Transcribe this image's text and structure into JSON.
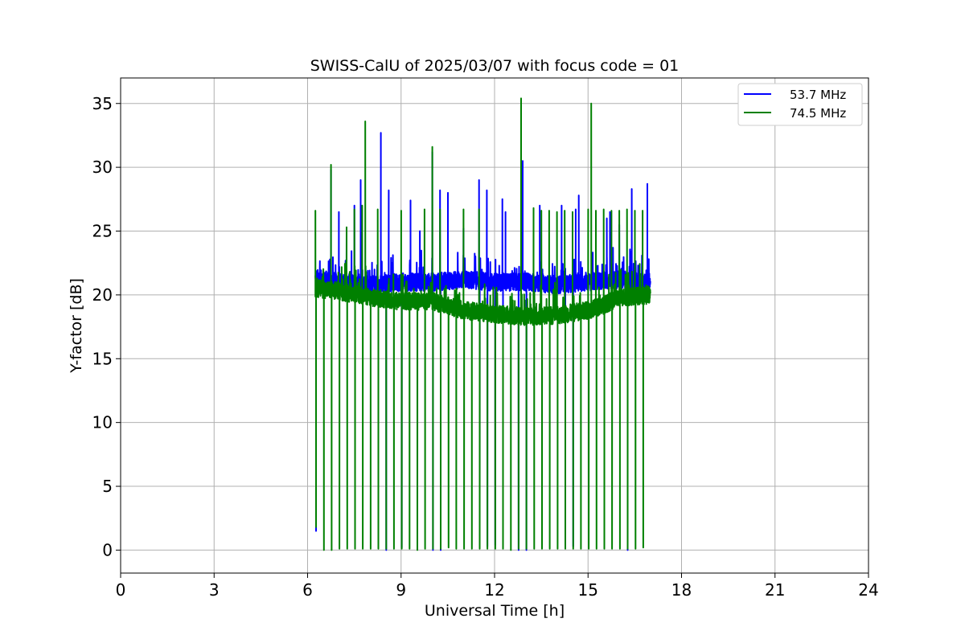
{
  "chart_data": {
    "type": "line",
    "title": "SWISS-CalU of 2025/03/07 with focus code = 01",
    "xlabel": "Universal Time [h]",
    "ylabel": "Y-factor [dB]",
    "xlim": [
      0,
      24
    ],
    "ylim": [
      -1.8,
      37
    ],
    "xticks": [
      0,
      3,
      6,
      9,
      12,
      15,
      18,
      21,
      24
    ],
    "yticks": [
      0,
      5,
      10,
      15,
      20,
      25,
      30,
      35
    ],
    "grid": true,
    "legend_position": "top-right",
    "calibration_interval_h": 0.25,
    "start_h": 6.25,
    "end_h": 17.0,
    "series": [
      {
        "name": "53.7 MHz",
        "color": "#0000ff",
        "baseline": [
          [
            6.3,
            21.3
          ],
          [
            7.0,
            21.0
          ],
          [
            8.0,
            20.8
          ],
          [
            9.0,
            21.0
          ],
          [
            10.0,
            21.0
          ],
          [
            11.0,
            21.2
          ],
          [
            12.0,
            21.0
          ],
          [
            13.0,
            21.0
          ],
          [
            14.0,
            20.8
          ],
          [
            15.0,
            21.0
          ],
          [
            16.0,
            21.2
          ],
          [
            17.0,
            21.0
          ]
        ],
        "spikes": [
          [
            6.25,
            21.5
          ],
          [
            6.5,
            21.8
          ],
          [
            6.75,
            29.8
          ],
          [
            7.0,
            26.5
          ],
          [
            7.25,
            24.8
          ],
          [
            7.5,
            27.0
          ],
          [
            7.7,
            29.0
          ],
          [
            8.35,
            32.7
          ],
          [
            8.6,
            28.2
          ],
          [
            9.3,
            27.4
          ],
          [
            9.6,
            25.0
          ],
          [
            10.0,
            31.2
          ],
          [
            10.25,
            28.2
          ],
          [
            10.5,
            28.0
          ],
          [
            11.0,
            25.2
          ],
          [
            11.5,
            29.0
          ],
          [
            11.75,
            28.2
          ],
          [
            12.25,
            27.5
          ],
          [
            12.35,
            26.5
          ],
          [
            12.9,
            30.5
          ],
          [
            13.45,
            27.0
          ],
          [
            14.15,
            27.0
          ],
          [
            14.6,
            26.7
          ],
          [
            14.7,
            27.8
          ],
          [
            15.6,
            26.0
          ],
          [
            15.7,
            26.5
          ],
          [
            16.0,
            25.5
          ],
          [
            16.4,
            28.3
          ],
          [
            16.9,
            28.7
          ]
        ],
        "dips": [
          [
            6.25,
            1.5
          ],
          [
            8.5,
            0.0
          ],
          [
            9.0,
            0.2
          ],
          [
            10.0,
            0.0
          ],
          [
            10.25,
            0.0
          ],
          [
            11.5,
            1.1
          ],
          [
            11.75,
            0.3
          ],
          [
            12.0,
            0.4
          ],
          [
            12.25,
            0.3
          ],
          [
            12.75,
            0.0
          ],
          [
            13.0,
            0.0
          ],
          [
            14.25,
            0.3
          ],
          [
            14.5,
            0.3
          ],
          [
            16.25,
            0.0
          ]
        ]
      },
      {
        "name": "74.5 MHz",
        "color": "#008000",
        "baseline": [
          [
            6.3,
            20.5
          ],
          [
            7.0,
            20.3
          ],
          [
            8.0,
            19.8
          ],
          [
            9.0,
            19.5
          ],
          [
            10.0,
            19.5
          ],
          [
            11.0,
            18.8
          ],
          [
            12.0,
            18.5
          ],
          [
            13.0,
            18.3
          ],
          [
            14.0,
            18.4
          ],
          [
            15.0,
            18.8
          ],
          [
            15.5,
            19.2
          ],
          [
            16.0,
            19.8
          ],
          [
            17.0,
            20.0
          ]
        ],
        "spikes": [
          [
            6.25,
            26.6
          ],
          [
            6.75,
            30.2
          ],
          [
            7.25,
            25.3
          ],
          [
            7.5,
            26.7
          ],
          [
            7.75,
            27.0
          ],
          [
            7.85,
            33.6
          ],
          [
            8.25,
            26.7
          ],
          [
            9.0,
            26.6
          ],
          [
            9.75,
            26.7
          ],
          [
            10.0,
            31.6
          ],
          [
            10.25,
            26.7
          ],
          [
            11.0,
            26.7
          ],
          [
            11.5,
            26.7
          ],
          [
            12.85,
            35.4
          ],
          [
            13.25,
            26.8
          ],
          [
            13.5,
            26.6
          ],
          [
            13.75,
            26.6
          ],
          [
            14.0,
            26.5
          ],
          [
            14.25,
            26.6
          ],
          [
            14.5,
            26.5
          ],
          [
            15.0,
            26.7
          ],
          [
            15.1,
            35.0
          ],
          [
            15.25,
            26.6
          ],
          [
            15.5,
            26.7
          ],
          [
            15.75,
            26.6
          ],
          [
            16.0,
            26.6
          ],
          [
            16.25,
            26.7
          ],
          [
            16.5,
            26.6
          ],
          [
            16.75,
            26.6
          ],
          [
            17.0,
            25.9
          ]
        ],
        "dips": [
          [
            6.25,
            1.8
          ],
          [
            6.5,
            0.0
          ],
          [
            6.75,
            0.0
          ],
          [
            7.0,
            0.1
          ],
          [
            7.25,
            0.1
          ],
          [
            7.5,
            0.1
          ],
          [
            7.75,
            0.1
          ],
          [
            8.0,
            0.1
          ],
          [
            8.25,
            0.1
          ],
          [
            8.5,
            0.1
          ],
          [
            8.75,
            0.1
          ],
          [
            9.0,
            0.1
          ],
          [
            9.25,
            0.1
          ],
          [
            9.5,
            0.0
          ],
          [
            9.75,
            0.1
          ],
          [
            10.0,
            0.1
          ],
          [
            10.25,
            0.1
          ],
          [
            10.5,
            0.2
          ],
          [
            10.75,
            0.1
          ],
          [
            11.0,
            0.1
          ],
          [
            11.25,
            0.1
          ],
          [
            11.5,
            0.1
          ],
          [
            11.75,
            0.1
          ],
          [
            12.0,
            0.1
          ],
          [
            12.25,
            0.1
          ],
          [
            12.5,
            0.0
          ],
          [
            12.75,
            0.1
          ],
          [
            13.0,
            0.1
          ],
          [
            13.25,
            0.1
          ],
          [
            13.5,
            0.1
          ],
          [
            13.75,
            0.1
          ],
          [
            14.0,
            0.1
          ],
          [
            14.25,
            0.1
          ],
          [
            14.5,
            0.1
          ],
          [
            14.75,
            0.1
          ],
          [
            15.0,
            0.1
          ],
          [
            15.25,
            0.1
          ],
          [
            15.5,
            0.1
          ],
          [
            15.75,
            0.1
          ],
          [
            16.0,
            0.1
          ],
          [
            16.25,
            0.1
          ],
          [
            16.5,
            0.1
          ],
          [
            16.75,
            0.2
          ]
        ]
      }
    ]
  }
}
